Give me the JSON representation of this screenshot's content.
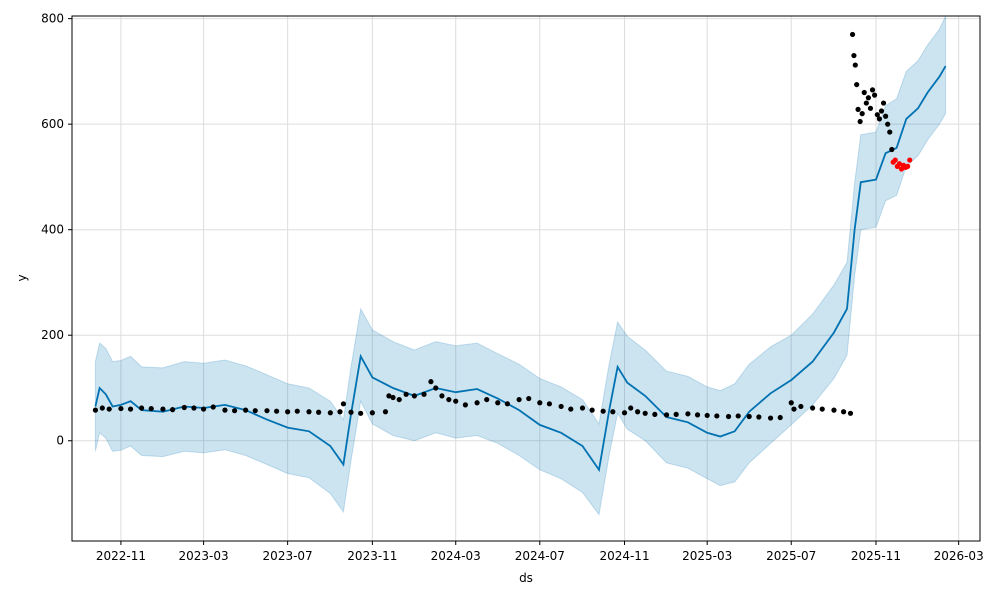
{
  "chart_data": {
    "type": "line",
    "title": "",
    "xlabel": "ds",
    "ylabel": "y",
    "x_axis_type": "date",
    "xlim": [
      "2022-08-22",
      "2026-04-01"
    ],
    "ylim": [
      -190,
      805
    ],
    "x_ticks": [
      {
        "date": "2022-11-01",
        "label": "2022-11"
      },
      {
        "date": "2023-03-01",
        "label": "2023-03"
      },
      {
        "date": "2023-07-01",
        "label": "2023-07"
      },
      {
        "date": "2023-11-01",
        "label": "2023-11"
      },
      {
        "date": "2024-03-01",
        "label": "2024-03"
      },
      {
        "date": "2024-07-01",
        "label": "2024-07"
      },
      {
        "date": "2024-11-01",
        "label": "2024-11"
      },
      {
        "date": "2025-03-01",
        "label": "2025-03"
      },
      {
        "date": "2025-07-01",
        "label": "2025-07"
      },
      {
        "date": "2025-11-01",
        "label": "2025-11"
      },
      {
        "date": "2026-03-01",
        "label": "2026-03"
      }
    ],
    "y_ticks": [
      0,
      200,
      400,
      600,
      800
    ],
    "grid": true,
    "colors": {
      "forecast_line": "#0072B2",
      "interval_fill": "#0072B2",
      "observed_points": "#000000",
      "test_points": "#ff0000"
    },
    "forecast": [
      {
        "x": "2022-09-25",
        "yhat": 65,
        "lower": -20,
        "upper": 150
      },
      {
        "x": "2022-10-01",
        "yhat": 100,
        "lower": 15,
        "upper": 185
      },
      {
        "x": "2022-10-10",
        "yhat": 88,
        "lower": 5,
        "upper": 175
      },
      {
        "x": "2022-10-20",
        "yhat": 65,
        "lower": -20,
        "upper": 150
      },
      {
        "x": "2022-11-01",
        "yhat": 68,
        "lower": -18,
        "upper": 152
      },
      {
        "x": "2022-11-15",
        "yhat": 75,
        "lower": -10,
        "upper": 160
      },
      {
        "x": "2022-12-01",
        "yhat": 58,
        "lower": -28,
        "upper": 140
      },
      {
        "x": "2023-01-01",
        "yhat": 55,
        "lower": -30,
        "upper": 138
      },
      {
        "x": "2023-02-01",
        "yhat": 65,
        "lower": -20,
        "upper": 150
      },
      {
        "x": "2023-03-01",
        "yhat": 62,
        "lower": -23,
        "upper": 147
      },
      {
        "x": "2023-04-01",
        "yhat": 68,
        "lower": -17,
        "upper": 153
      },
      {
        "x": "2023-05-01",
        "yhat": 58,
        "lower": -28,
        "upper": 142
      },
      {
        "x": "2023-06-01",
        "yhat": 40,
        "lower": -45,
        "upper": 125
      },
      {
        "x": "2023-07-01",
        "yhat": 25,
        "lower": -62,
        "upper": 108
      },
      {
        "x": "2023-08-01",
        "yhat": 18,
        "lower": -70,
        "upper": 100
      },
      {
        "x": "2023-09-01",
        "yhat": -10,
        "lower": -100,
        "upper": 75
      },
      {
        "x": "2023-09-20",
        "yhat": -45,
        "lower": -135,
        "upper": 40
      },
      {
        "x": "2023-10-01",
        "yhat": 50,
        "lower": -38,
        "upper": 140
      },
      {
        "x": "2023-10-15",
        "yhat": 160,
        "lower": 75,
        "upper": 250
      },
      {
        "x": "2023-11-01",
        "yhat": 120,
        "lower": 32,
        "upper": 210
      },
      {
        "x": "2023-12-01",
        "yhat": 100,
        "lower": 10,
        "upper": 188
      },
      {
        "x": "2024-01-01",
        "yhat": 85,
        "lower": 0,
        "upper": 172
      },
      {
        "x": "2024-02-01",
        "yhat": 100,
        "lower": 15,
        "upper": 188
      },
      {
        "x": "2024-03-01",
        "yhat": 92,
        "lower": 5,
        "upper": 180
      },
      {
        "x": "2024-04-01",
        "yhat": 98,
        "lower": 10,
        "upper": 185
      },
      {
        "x": "2024-05-01",
        "yhat": 80,
        "lower": -5,
        "upper": 165
      },
      {
        "x": "2024-06-01",
        "yhat": 58,
        "lower": -28,
        "upper": 145
      },
      {
        "x": "2024-07-01",
        "yhat": 30,
        "lower": -55,
        "upper": 118
      },
      {
        "x": "2024-08-01",
        "yhat": 15,
        "lower": -72,
        "upper": 102
      },
      {
        "x": "2024-09-01",
        "yhat": -10,
        "lower": -98,
        "upper": 78
      },
      {
        "x": "2024-09-25",
        "yhat": -55,
        "lower": -140,
        "upper": 32
      },
      {
        "x": "2024-10-10",
        "yhat": 60,
        "lower": -25,
        "upper": 148
      },
      {
        "x": "2024-10-22",
        "yhat": 140,
        "lower": 52,
        "upper": 225
      },
      {
        "x": "2024-11-05",
        "yhat": 110,
        "lower": 22,
        "upper": 198
      },
      {
        "x": "2024-12-01",
        "yhat": 85,
        "lower": 0,
        "upper": 172
      },
      {
        "x": "2025-01-01",
        "yhat": 45,
        "lower": -42,
        "upper": 132
      },
      {
        "x": "2025-02-01",
        "yhat": 35,
        "lower": -52,
        "upper": 122
      },
      {
        "x": "2025-03-01",
        "yhat": 15,
        "lower": -72,
        "upper": 102
      },
      {
        "x": "2025-03-20",
        "yhat": 8,
        "lower": -85,
        "upper": 95
      },
      {
        "x": "2025-04-10",
        "yhat": 18,
        "lower": -78,
        "upper": 108
      },
      {
        "x": "2025-05-01",
        "yhat": 55,
        "lower": -42,
        "upper": 145
      },
      {
        "x": "2025-06-01",
        "yhat": 90,
        "lower": -5,
        "upper": 178
      },
      {
        "x": "2025-07-01",
        "yhat": 115,
        "lower": 30,
        "upper": 200
      },
      {
        "x": "2025-08-01",
        "yhat": 150,
        "lower": 68,
        "upper": 240
      },
      {
        "x": "2025-09-01",
        "yhat": 205,
        "lower": 118,
        "upper": 295
      },
      {
        "x": "2025-09-20",
        "yhat": 250,
        "lower": 162,
        "upper": 338
      },
      {
        "x": "2025-10-01",
        "yhat": 400,
        "lower": 312,
        "upper": 488
      },
      {
        "x": "2025-10-10",
        "yhat": 490,
        "lower": 400,
        "upper": 580
      },
      {
        "x": "2025-11-01",
        "yhat": 495,
        "lower": 405,
        "upper": 585
      },
      {
        "x": "2025-11-15",
        "yhat": 545,
        "lower": 455,
        "upper": 635
      },
      {
        "x": "2025-12-01",
        "yhat": 555,
        "lower": 465,
        "upper": 648
      },
      {
        "x": "2025-12-15",
        "yhat": 610,
        "lower": 520,
        "upper": 700
      },
      {
        "x": "2026-01-01",
        "yhat": 630,
        "lower": 540,
        "upper": 720
      },
      {
        "x": "2026-01-15",
        "yhat": 660,
        "lower": 570,
        "upper": 750
      },
      {
        "x": "2026-02-01",
        "yhat": 690,
        "lower": 600,
        "upper": 780
      },
      {
        "x": "2026-02-10",
        "yhat": 710,
        "lower": 620,
        "upper": 805
      }
    ],
    "observed": [
      {
        "x": "2022-09-25",
        "y": 58
      },
      {
        "x": "2022-10-05",
        "y": 62
      },
      {
        "x": "2022-10-15",
        "y": 60
      },
      {
        "x": "2022-11-01",
        "y": 61
      },
      {
        "x": "2022-11-15",
        "y": 60
      },
      {
        "x": "2022-12-01",
        "y": 62
      },
      {
        "x": "2022-12-15",
        "y": 61
      },
      {
        "x": "2023-01-01",
        "y": 60
      },
      {
        "x": "2023-01-15",
        "y": 59
      },
      {
        "x": "2023-02-01",
        "y": 63
      },
      {
        "x": "2023-02-15",
        "y": 62
      },
      {
        "x": "2023-03-01",
        "y": 60
      },
      {
        "x": "2023-03-15",
        "y": 64
      },
      {
        "x": "2023-04-01",
        "y": 58
      },
      {
        "x": "2023-04-15",
        "y": 57
      },
      {
        "x": "2023-05-01",
        "y": 58
      },
      {
        "x": "2023-05-15",
        "y": 57
      },
      {
        "x": "2023-06-01",
        "y": 57
      },
      {
        "x": "2023-06-15",
        "y": 56
      },
      {
        "x": "2023-07-01",
        "y": 55
      },
      {
        "x": "2023-07-15",
        "y": 56
      },
      {
        "x": "2023-08-01",
        "y": 55
      },
      {
        "x": "2023-08-15",
        "y": 54
      },
      {
        "x": "2023-09-01",
        "y": 53
      },
      {
        "x": "2023-09-15",
        "y": 55
      },
      {
        "x": "2023-09-20",
        "y": 70
      },
      {
        "x": "2023-10-01",
        "y": 54
      },
      {
        "x": "2023-10-15",
        "y": 52
      },
      {
        "x": "2023-11-01",
        "y": 53
      },
      {
        "x": "2023-11-20",
        "y": 55
      },
      {
        "x": "2023-11-25",
        "y": 85
      },
      {
        "x": "2023-12-01",
        "y": 82
      },
      {
        "x": "2023-12-10",
        "y": 78
      },
      {
        "x": "2023-12-20",
        "y": 88
      },
      {
        "x": "2024-01-01",
        "y": 85
      },
      {
        "x": "2024-01-15",
        "y": 88
      },
      {
        "x": "2024-01-25",
        "y": 112
      },
      {
        "x": "2024-02-01",
        "y": 100
      },
      {
        "x": "2024-02-10",
        "y": 85
      },
      {
        "x": "2024-02-20",
        "y": 78
      },
      {
        "x": "2024-03-01",
        "y": 75
      },
      {
        "x": "2024-03-15",
        "y": 68
      },
      {
        "x": "2024-04-01",
        "y": 72
      },
      {
        "x": "2024-04-15",
        "y": 78
      },
      {
        "x": "2024-05-01",
        "y": 72
      },
      {
        "x": "2024-05-15",
        "y": 70
      },
      {
        "x": "2024-06-01",
        "y": 78
      },
      {
        "x": "2024-06-15",
        "y": 80
      },
      {
        "x": "2024-07-01",
        "y": 72
      },
      {
        "x": "2024-07-15",
        "y": 70
      },
      {
        "x": "2024-08-01",
        "y": 65
      },
      {
        "x": "2024-08-15",
        "y": 60
      },
      {
        "x": "2024-09-01",
        "y": 62
      },
      {
        "x": "2024-09-15",
        "y": 58
      },
      {
        "x": "2024-10-01",
        "y": 56
      },
      {
        "x": "2024-10-15",
        "y": 55
      },
      {
        "x": "2024-11-01",
        "y": 53
      },
      {
        "x": "2024-11-10",
        "y": 62
      },
      {
        "x": "2024-11-20",
        "y": 55
      },
      {
        "x": "2024-12-01",
        "y": 52
      },
      {
        "x": "2024-12-15",
        "y": 50
      },
      {
        "x": "2025-01-01",
        "y": 49
      },
      {
        "x": "2025-01-15",
        "y": 50
      },
      {
        "x": "2025-02-01",
        "y": 51
      },
      {
        "x": "2025-02-15",
        "y": 49
      },
      {
        "x": "2025-03-01",
        "y": 48
      },
      {
        "x": "2025-03-15",
        "y": 47
      },
      {
        "x": "2025-04-01",
        "y": 46
      },
      {
        "x": "2025-04-15",
        "y": 47
      },
      {
        "x": "2025-05-01",
        "y": 46
      },
      {
        "x": "2025-05-15",
        "y": 45
      },
      {
        "x": "2025-06-01",
        "y": 43
      },
      {
        "x": "2025-06-15",
        "y": 44
      },
      {
        "x": "2025-07-01",
        "y": 72
      },
      {
        "x": "2025-07-05",
        "y": 60
      },
      {
        "x": "2025-07-15",
        "y": 65
      },
      {
        "x": "2025-08-01",
        "y": 62
      },
      {
        "x": "2025-08-15",
        "y": 60
      },
      {
        "x": "2025-09-01",
        "y": 58
      },
      {
        "x": "2025-09-15",
        "y": 55
      },
      {
        "x": "2025-09-25",
        "y": 52
      },
      {
        "x": "2025-09-28",
        "y": 770
      },
      {
        "x": "2025-09-30",
        "y": 730
      },
      {
        "x": "2025-10-02",
        "y": 712
      },
      {
        "x": "2025-10-04",
        "y": 675
      },
      {
        "x": "2025-10-06",
        "y": 628
      },
      {
        "x": "2025-10-09",
        "y": 605
      },
      {
        "x": "2025-10-12",
        "y": 620
      },
      {
        "x": "2025-10-15",
        "y": 660
      },
      {
        "x": "2025-10-18",
        "y": 640
      },
      {
        "x": "2025-10-21",
        "y": 650
      },
      {
        "x": "2025-10-24",
        "y": 630
      },
      {
        "x": "2025-10-27",
        "y": 665
      },
      {
        "x": "2025-10-30",
        "y": 655
      },
      {
        "x": "2025-11-03",
        "y": 618
      },
      {
        "x": "2025-11-06",
        "y": 610
      },
      {
        "x": "2025-11-09",
        "y": 625
      },
      {
        "x": "2025-11-12",
        "y": 640
      },
      {
        "x": "2025-11-15",
        "y": 615
      },
      {
        "x": "2025-11-18",
        "y": 600
      },
      {
        "x": "2025-11-21",
        "y": 585
      },
      {
        "x": "2025-11-24",
        "y": 552
      }
    ],
    "test": [
      {
        "x": "2025-11-26",
        "y": 528
      },
      {
        "x": "2025-11-29",
        "y": 532
      },
      {
        "x": "2025-12-02",
        "y": 520
      },
      {
        "x": "2025-12-05",
        "y": 525
      },
      {
        "x": "2025-12-08",
        "y": 515
      },
      {
        "x": "2025-12-11",
        "y": 522
      },
      {
        "x": "2025-12-14",
        "y": 518
      },
      {
        "x": "2025-12-17",
        "y": 520
      },
      {
        "x": "2025-12-20",
        "y": 532
      }
    ]
  }
}
